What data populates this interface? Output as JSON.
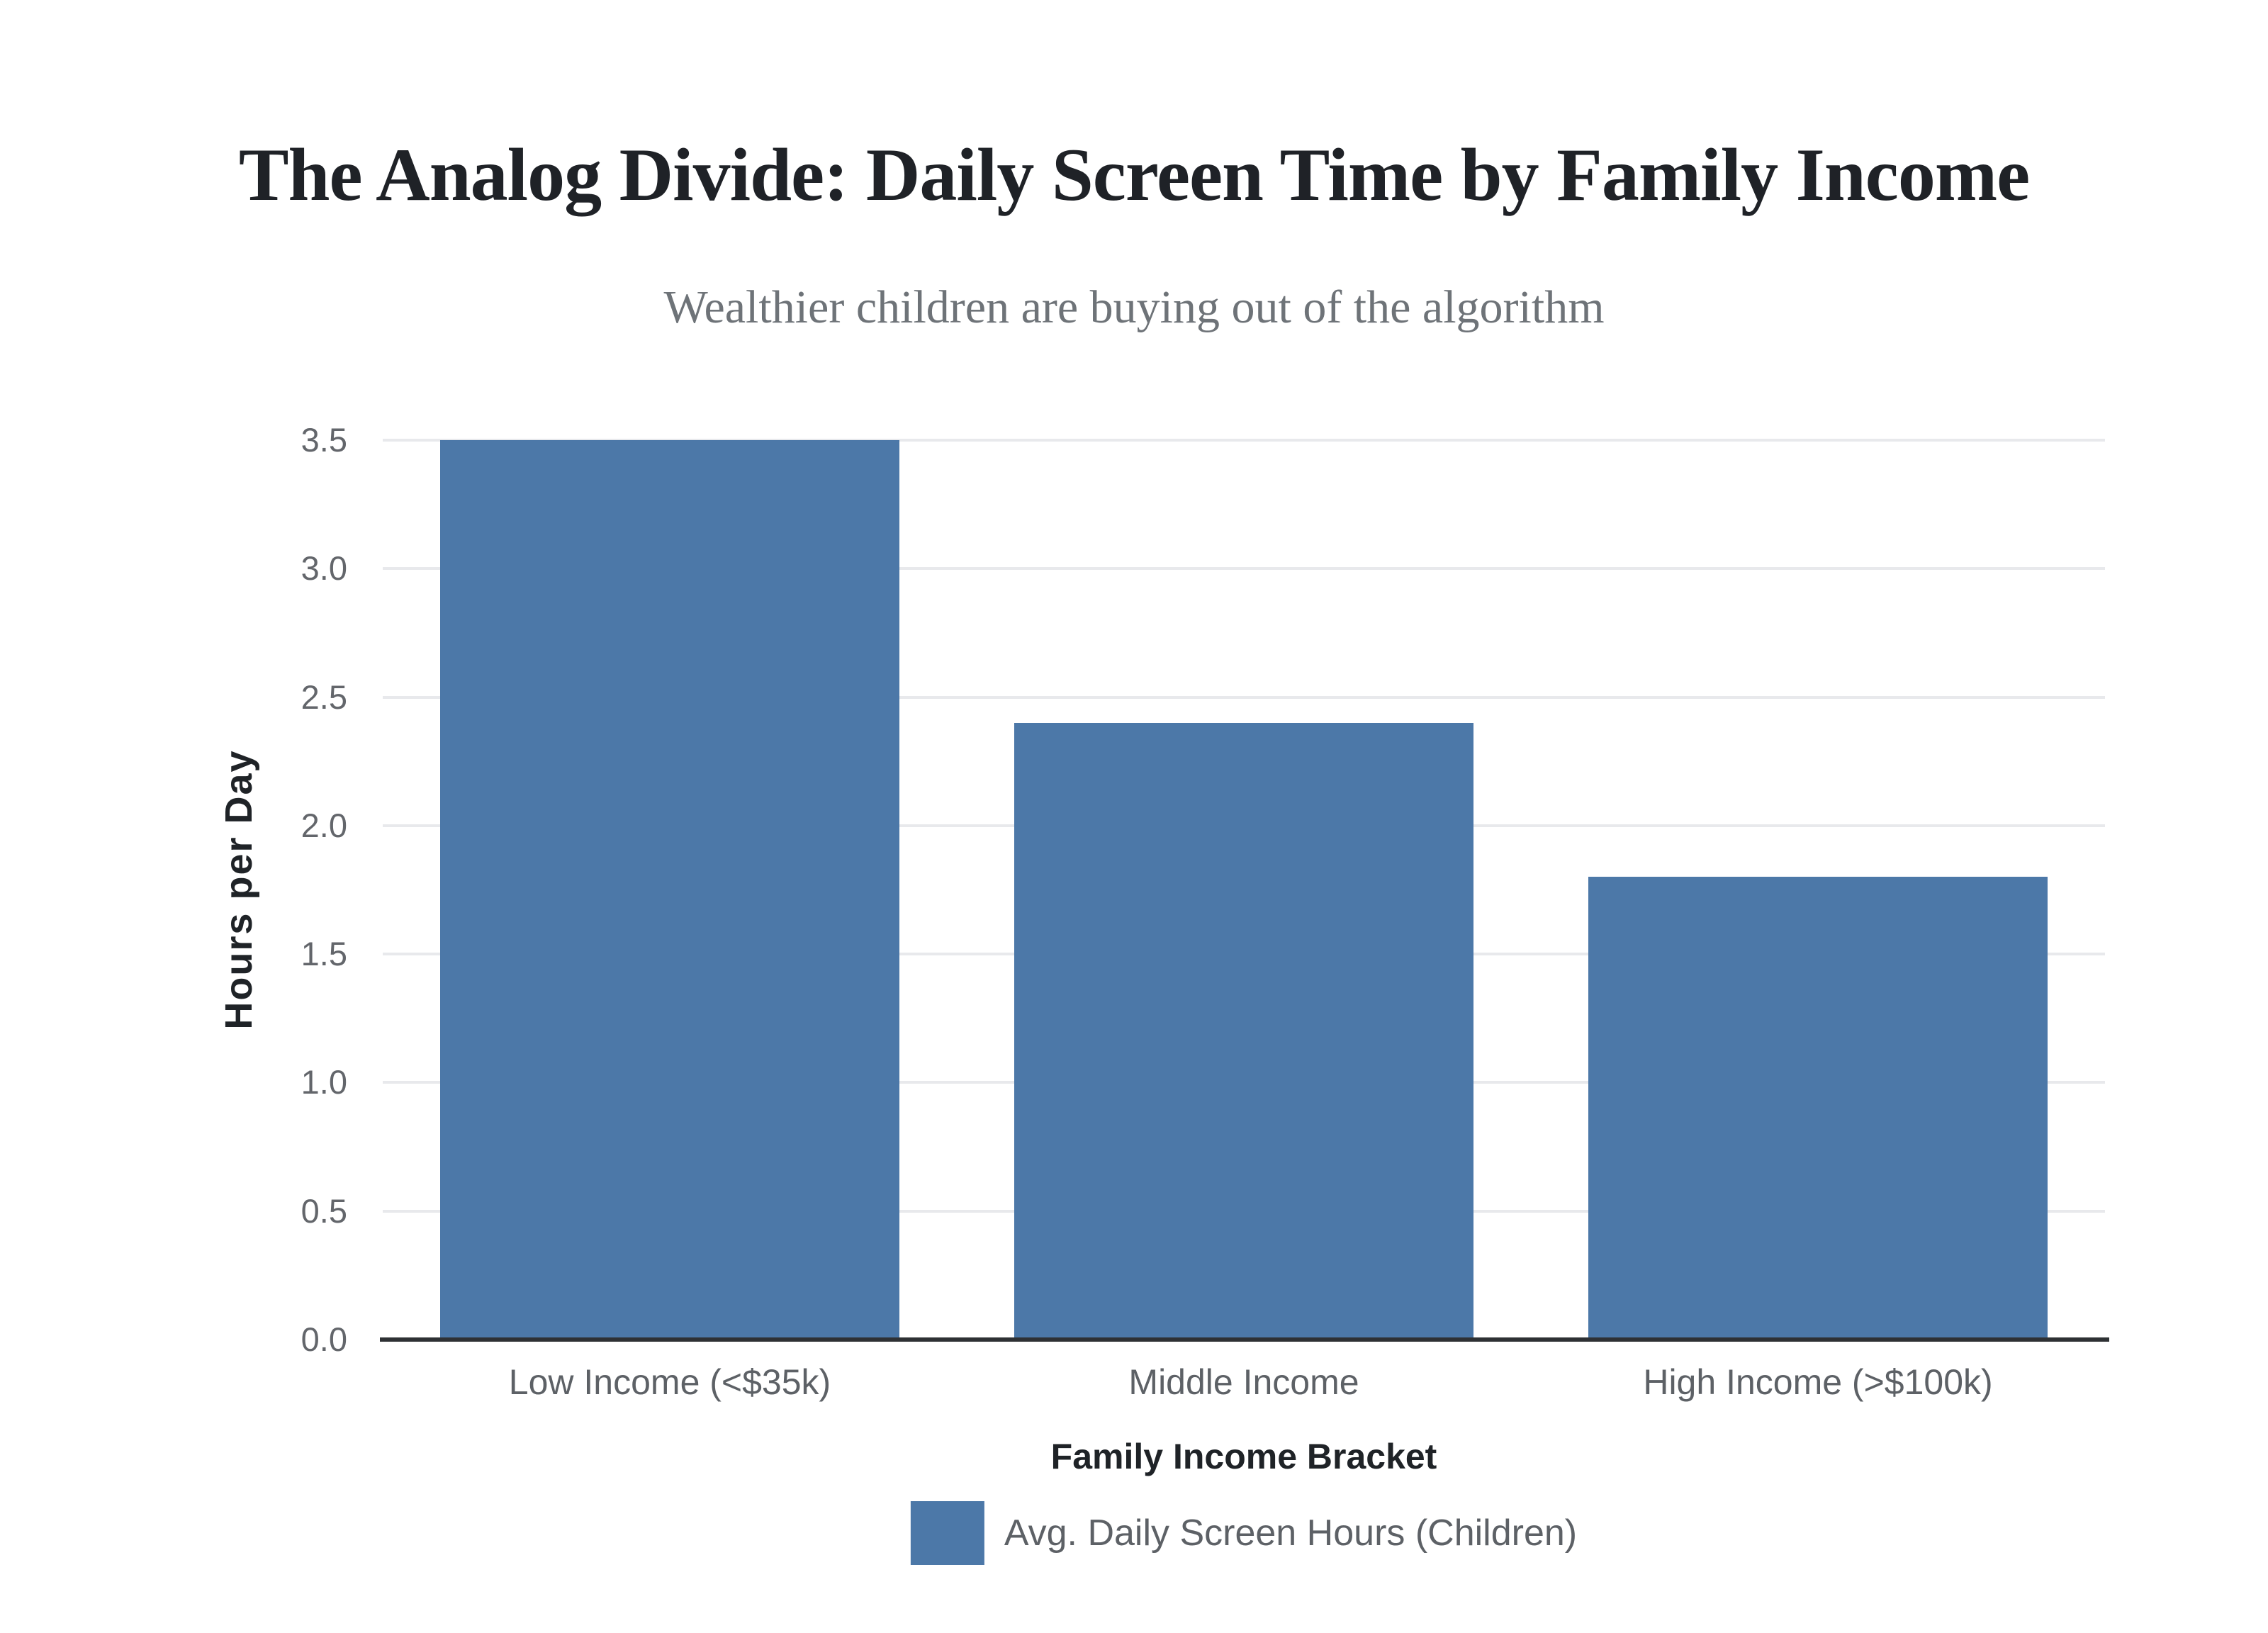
{
  "chart_data": {
    "type": "bar",
    "title": "The Analog Divide: Daily Screen Time by Family Income",
    "subtitle": "Wealthier children are buying out of the algorithm",
    "xlabel": "Family Income Bracket",
    "ylabel": "Hours per Day",
    "categories": [
      "Low Income (<$35k)",
      "Middle Income",
      "High Income (>$100k)"
    ],
    "series": [
      {
        "name": "Avg. Daily Screen Hours (Children)",
        "values": [
          3.5,
          2.4,
          1.8
        ]
      }
    ],
    "ylim": [
      0.0,
      3.5
    ],
    "ytick_step": 0.5,
    "ytick_labels": [
      "0.0",
      "0.5",
      "1.0",
      "1.5",
      "2.0",
      "2.5",
      "3.0",
      "3.5"
    ],
    "grid": true,
    "legend_position": "bottom-center",
    "legend_entries": [
      {
        "label": "Avg. Daily Screen Hours (Children)",
        "swatch_color": "#4C78A8"
      }
    ],
    "bar_width_fraction": 0.8
  },
  "colors": {
    "background": "#FFFFFF",
    "bar": "#4C78A8",
    "gridline": "#E8E9EC",
    "axis_line": "#2E3134",
    "title_text": "#1F2227",
    "subtitle_text": "#6E7378",
    "y_tick_text": "#63666B",
    "x_tick_text": "#5D6166",
    "axis_title_text": "#1F2327",
    "legend_text": "#5D6166"
  }
}
